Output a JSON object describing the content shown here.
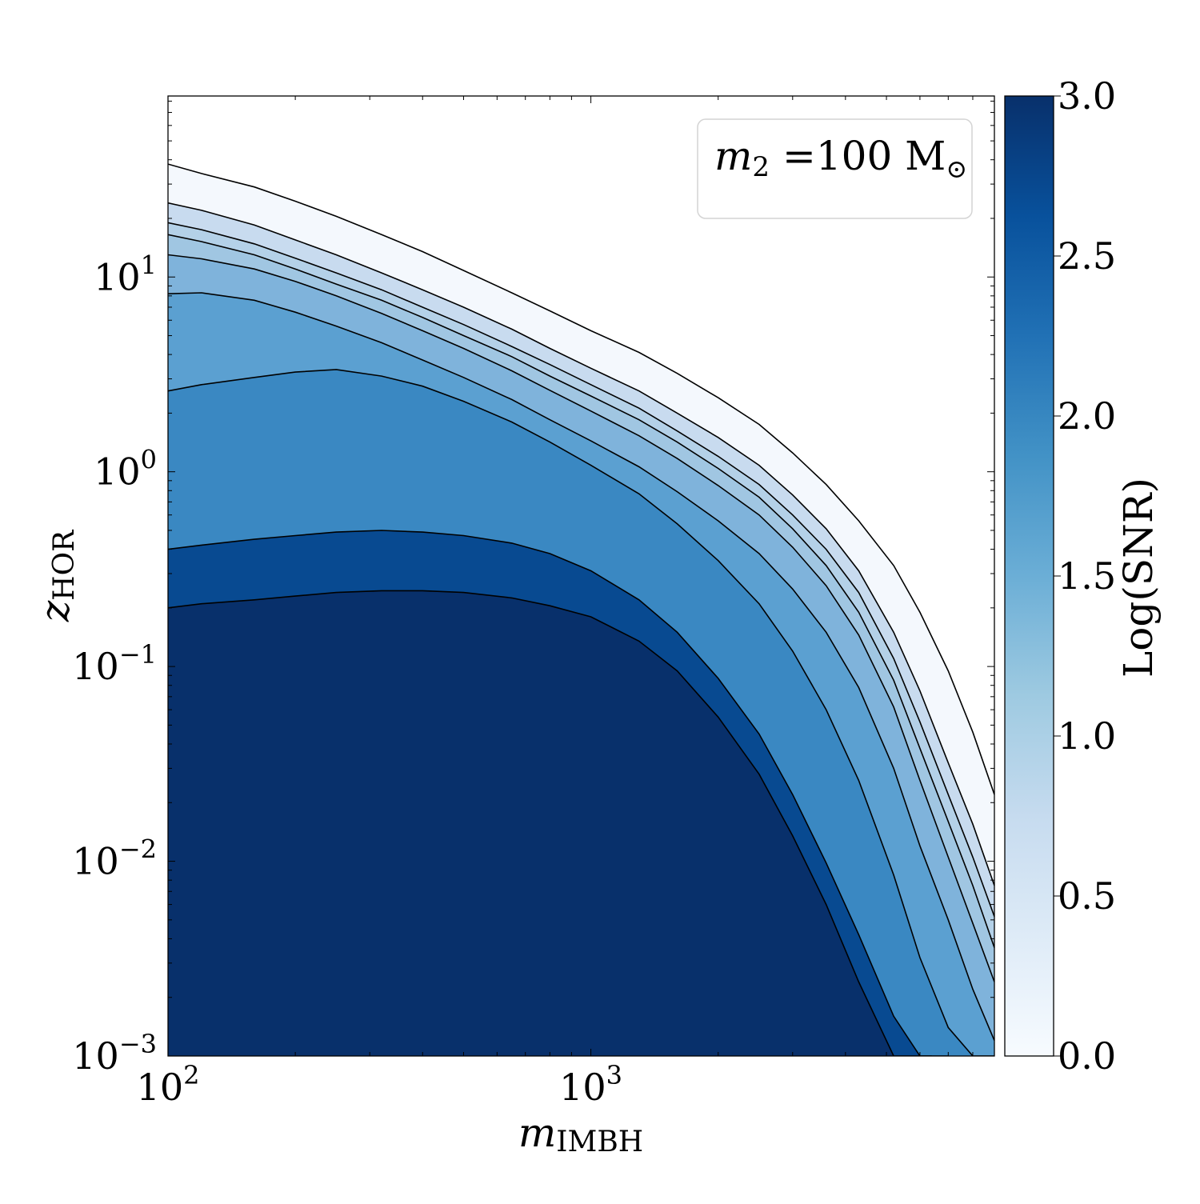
{
  "chart_data": {
    "type": "contourf",
    "title": "",
    "xlabel": {
      "main": "m",
      "sub": "IMBH"
    },
    "ylabel": {
      "main": "z",
      "sub": "HOR"
    },
    "xscale": "log",
    "yscale": "log",
    "xlim": [
      100,
      9000
    ],
    "ylim": [
      0.001,
      85
    ],
    "x_ticks": [
      {
        "value": 100,
        "base": "10",
        "exp": "2"
      },
      {
        "value": 1000,
        "base": "10",
        "exp": "3"
      }
    ],
    "y_ticks": [
      {
        "value": 0.001,
        "base": "10",
        "exp": "−3"
      },
      {
        "value": 0.01,
        "base": "10",
        "exp": "−2"
      },
      {
        "value": 0.1,
        "base": "10",
        "exp": "−1"
      },
      {
        "value": 1,
        "base": "10",
        "exp": "0"
      },
      {
        "value": 10,
        "base": "10",
        "exp": "1"
      }
    ],
    "legend": {
      "placement": "top-right",
      "main": "m",
      "sub": "2",
      "rest": " =100 M",
      "sun_sub": "⊙"
    },
    "colorbar": {
      "label": "Log(SNR)",
      "range": [
        0.0,
        3.0
      ],
      "ticks": [
        "0.0",
        "0.5",
        "1.0",
        "1.5",
        "2.0",
        "2.5",
        "3.0"
      ],
      "colormap": "Blues"
    },
    "grid": false,
    "levels": [
      {
        "log_snr": 0.0,
        "color": "#f4f8fd",
        "x": [
          100,
          120,
          160,
          200,
          250,
          320,
          400,
          500,
          650,
          800,
          1000,
          1300,
          1600,
          2000,
          2500,
          3000,
          3600,
          4300,
          5200,
          6000,
          7000,
          8000,
          9000
        ],
        "y": [
          38,
          34,
          29,
          24.5,
          20.5,
          16.5,
          13.5,
          10.8,
          8.3,
          6.7,
          5.3,
          4.1,
          3.2,
          2.4,
          1.75,
          1.25,
          0.86,
          0.56,
          0.33,
          0.19,
          0.095,
          0.046,
          0.022
        ]
      },
      {
        "log_snr": 0.33,
        "color": "#c8dbef",
        "x": [
          100,
          120,
          160,
          200,
          250,
          320,
          400,
          500,
          650,
          800,
          1000,
          1300,
          1600,
          2000,
          2500,
          3000,
          3600,
          4300,
          5200,
          6000,
          7000,
          8000,
          9000
        ],
        "y": [
          24,
          22,
          18.5,
          15.5,
          13,
          10.5,
          8.6,
          7,
          5.4,
          4.3,
          3.4,
          2.6,
          2,
          1.5,
          1.08,
          0.76,
          0.51,
          0.31,
          0.15,
          0.075,
          0.032,
          0.0155,
          0.0075
        ]
      },
      {
        "log_snr": 0.67,
        "color": "#b4d1e8",
        "x": [
          100,
          120,
          160,
          200,
          250,
          320,
          400,
          500,
          650,
          800,
          1000,
          1300,
          1600,
          2000,
          2500,
          3000,
          3600,
          4300,
          5200,
          6000,
          7000,
          8000,
          9000
        ],
        "y": [
          19,
          17.5,
          14.8,
          12.5,
          10.5,
          8.6,
          7,
          5.7,
          4.4,
          3.55,
          2.8,
          2.12,
          1.62,
          1.2,
          0.86,
          0.6,
          0.4,
          0.24,
          0.11,
          0.052,
          0.022,
          0.0105,
          0.0052
        ]
      },
      {
        "log_snr": 1.0,
        "color": "#a0c6e2",
        "x": [
          100,
          120,
          160,
          200,
          250,
          320,
          400,
          500,
          650,
          800,
          1000,
          1300,
          1600,
          2000,
          2500,
          3000,
          3600,
          4300,
          5200,
          6000,
          7000,
          8000,
          9000
        ],
        "y": [
          16.5,
          15.2,
          13,
          11,
          9.2,
          7.6,
          6.2,
          5,
          3.9,
          3.1,
          2.45,
          1.85,
          1.42,
          1.04,
          0.74,
          0.51,
          0.33,
          0.19,
          0.085,
          0.038,
          0.016,
          0.0075,
          0.0036
        ]
      },
      {
        "log_snr": 1.33,
        "color": "#7fb3db",
        "x": [
          100,
          120,
          160,
          200,
          250,
          320,
          400,
          500,
          650,
          800,
          1000,
          1300,
          1600,
          2000,
          2500,
          3000,
          3600,
          4300,
          5200,
          6000,
          7000,
          8000,
          9000
        ],
        "y": [
          13,
          12.4,
          11,
          9.5,
          8,
          6.5,
          5.3,
          4.3,
          3.3,
          2.62,
          2.05,
          1.53,
          1.17,
          0.85,
          0.6,
          0.41,
          0.26,
          0.145,
          0.062,
          0.026,
          0.0105,
          0.0048,
          0.0024
        ]
      },
      {
        "log_snr": 1.67,
        "color": "#5ba0d1",
        "x": [
          100,
          120,
          160,
          200,
          250,
          320,
          400,
          500,
          650,
          800,
          1000,
          1300,
          1600,
          2000,
          2500,
          3000,
          3600,
          4300,
          5200,
          6000,
          7000,
          8000,
          9000
        ],
        "y": [
          8.2,
          8.3,
          7.6,
          6.6,
          5.6,
          4.6,
          3.75,
          3.05,
          2.35,
          1.85,
          1.44,
          1.06,
          0.79,
          0.56,
          0.38,
          0.25,
          0.15,
          0.078,
          0.03,
          0.012,
          0.005,
          0.0022,
          0.0012
        ]
      },
      {
        "log_snr": 2.0,
        "color": "#3a88c2",
        "x": [
          100,
          120,
          160,
          200,
          250,
          320,
          400,
          500,
          650,
          800,
          1000,
          1300,
          1600,
          2000,
          2500,
          3000,
          3600,
          4300,
          5200,
          6000,
          7000,
          8000,
          9000
        ],
        "y": [
          2.6,
          2.8,
          3.05,
          3.25,
          3.35,
          3.1,
          2.75,
          2.3,
          1.8,
          1.42,
          1.08,
          0.77,
          0.54,
          0.35,
          0.21,
          0.12,
          0.06,
          0.026,
          0.0085,
          0.0032,
          0.0014,
          0.001,
          0.001
        ]
      },
      {
        "log_snr": 2.33,
        "color": "#084a91",
        "x": [
          100,
          120,
          160,
          200,
          250,
          320,
          400,
          500,
          650,
          800,
          1000,
          1300,
          1600,
          2000,
          2500,
          3000,
          3600,
          4300,
          5200,
          6000,
          6400,
          7000
        ],
        "y": [
          0.4,
          0.42,
          0.45,
          0.47,
          0.49,
          0.5,
          0.49,
          0.47,
          0.43,
          0.38,
          0.31,
          0.22,
          0.15,
          0.087,
          0.045,
          0.022,
          0.0098,
          0.0042,
          0.0016,
          0.001,
          0.001,
          0.001
        ]
      },
      {
        "log_snr": 2.67,
        "color": "#08306b",
        "x": [
          100,
          120,
          160,
          200,
          250,
          320,
          400,
          500,
          650,
          800,
          1000,
          1300,
          1600,
          2000,
          2500,
          3000,
          3600,
          4300,
          5200,
          5800,
          6400
        ],
        "y": [
          0.2,
          0.21,
          0.22,
          0.23,
          0.24,
          0.245,
          0.245,
          0.24,
          0.225,
          0.205,
          0.18,
          0.135,
          0.095,
          0.055,
          0.028,
          0.0135,
          0.006,
          0.0024,
          0.001,
          0.001,
          0.001
        ]
      }
    ]
  }
}
